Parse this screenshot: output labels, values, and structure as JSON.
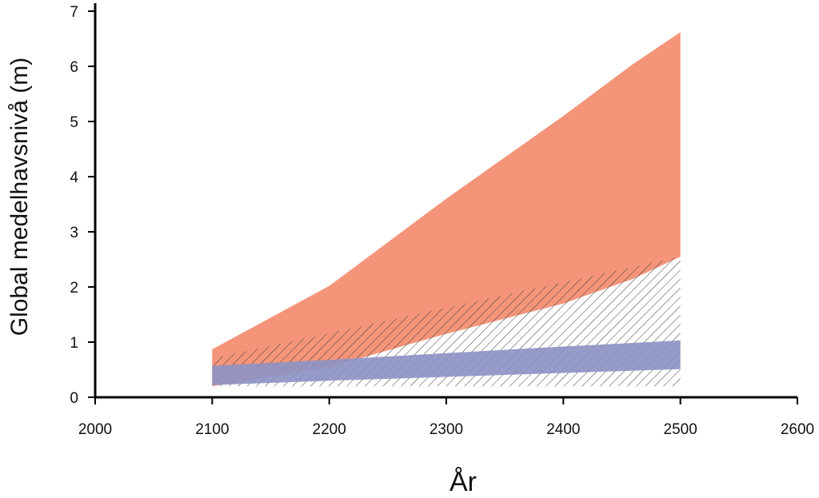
{
  "chart_data": {
    "type": "area",
    "title": "",
    "xlabel": "År",
    "ylabel": "Global medelhavsnivå (m)",
    "xlim": [
      2000,
      2600
    ],
    "ylim": [
      0,
      7
    ],
    "x_ticks": [
      "2000",
      "2100",
      "2200",
      "2300",
      "2400",
      "2500",
      "2600"
    ],
    "y_ticks": [
      "0",
      "1",
      "2",
      "3",
      "4",
      "5",
      "6",
      "7"
    ],
    "grid": false,
    "legend": "none",
    "series": [
      {
        "style": "filled",
        "color": "#f4957a",
        "x": [
          2100,
          2200,
          2300,
          2400,
          2460,
          2500
        ],
        "upper": [
          0.87,
          2.02,
          3.6,
          5.1,
          6.05,
          6.62
        ],
        "lower": [
          0.2,
          0.55,
          1.15,
          1.7,
          2.15,
          2.55
        ]
      },
      {
        "style": "hatched",
        "color": "#444444",
        "x": [
          2100,
          2500
        ],
        "upper": [
          0.7,
          2.55
        ],
        "lower": [
          0.2,
          0.2
        ]
      },
      {
        "style": "filled",
        "color": "#8e92c4",
        "x": [
          2100,
          2200,
          2300,
          2400,
          2500
        ],
        "upper": [
          0.57,
          0.68,
          0.8,
          0.92,
          1.03
        ],
        "lower": [
          0.22,
          0.3,
          0.37,
          0.44,
          0.51
        ]
      }
    ]
  }
}
